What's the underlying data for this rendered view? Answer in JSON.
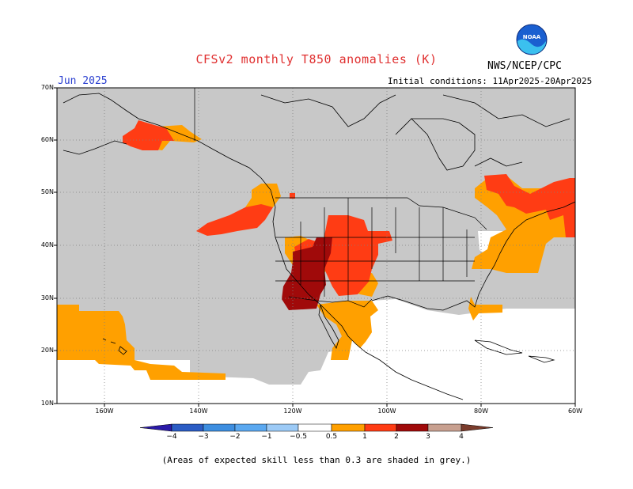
{
  "title": "CFSv2 monthly T850 anomalies (K)",
  "org": "NWS/NCEP/CPC",
  "logo_text": "NOAA",
  "month": "Jun 2025",
  "initial_conditions": "Initial conditions: 11Apr2025-20Apr2025",
  "lat_labels": [
    "70N",
    "60N",
    "50N",
    "40N",
    "30N",
    "20N",
    "10N"
  ],
  "lon_labels": [
    "160W",
    "140W",
    "120W",
    "100W",
    "80W",
    "60W"
  ],
  "colorbar": {
    "labels": [
      "−4",
      "−3",
      "−2",
      "−1",
      "−0.5",
      "0.5",
      "1",
      "2",
      "3",
      "4"
    ],
    "colors": [
      "#2a1aa8",
      "#2b5cc4",
      "#3d8ee0",
      "#5aa8f0",
      "#9ccaf6",
      "#ffffff",
      "#ffa000",
      "#ff3c14",
      "#a00a0a",
      "#c8a090",
      "#7a3c2c"
    ]
  },
  "legend_colors": {
    "grey_low_skill": "#c8c8c8",
    "anom_0_5_1": "#ffa000",
    "anom_1_2": "#ff3c14",
    "anom_2_3": "#a00a0a"
  },
  "footnote": "(Areas of expected skill less than 0.3 are shaded in grey.)"
}
